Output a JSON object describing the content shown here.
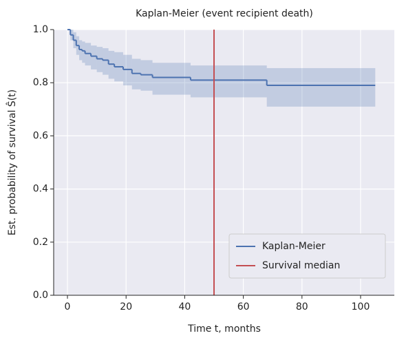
{
  "chart_data": {
    "type": "step",
    "title": "Kaplan-Meier (event recipient death)",
    "x_label": "Time t, months",
    "y_label": "Est. probability of survival Ŝ(t)",
    "x": [
      0,
      1,
      2,
      3,
      4,
      5,
      6,
      8,
      10,
      12,
      14,
      16,
      19,
      22,
      25,
      29,
      42,
      68,
      105
    ],
    "series": [
      {
        "name": "Kaplan-Meier",
        "color": "#4c72b0",
        "values": [
          1.0,
          0.98,
          0.96,
          0.94,
          0.925,
          0.92,
          0.91,
          0.9,
          0.89,
          0.885,
          0.87,
          0.86,
          0.85,
          0.835,
          0.83,
          0.82,
          0.81,
          0.79,
          0.79
        ],
        "ci_lower": [
          1.0,
          0.96,
          0.93,
          0.905,
          0.885,
          0.875,
          0.865,
          0.85,
          0.84,
          0.83,
          0.815,
          0.805,
          0.79,
          0.775,
          0.77,
          0.755,
          0.745,
          0.71,
          0.71
        ],
        "ci_upper": [
          1.0,
          1.0,
          0.99,
          0.975,
          0.96,
          0.955,
          0.95,
          0.94,
          0.935,
          0.93,
          0.92,
          0.915,
          0.905,
          0.89,
          0.885,
          0.875,
          0.865,
          0.855,
          0.855
        ]
      }
    ],
    "median": {
      "name": "Survival median",
      "color": "#c44e52",
      "value": 50
    },
    "xlim": [
      -4.7,
      111.5
    ],
    "ylim": [
      0,
      1
    ],
    "xticks": [
      0,
      20,
      40,
      60,
      80,
      100
    ],
    "yticks": [
      {
        "value": 0,
        "label": "0.0"
      },
      0.2,
      0.4,
      0.6,
      0.8,
      {
        "value": 1,
        "label": "1.0"
      }
    ],
    "grid": true,
    "legend": "lower right"
  }
}
